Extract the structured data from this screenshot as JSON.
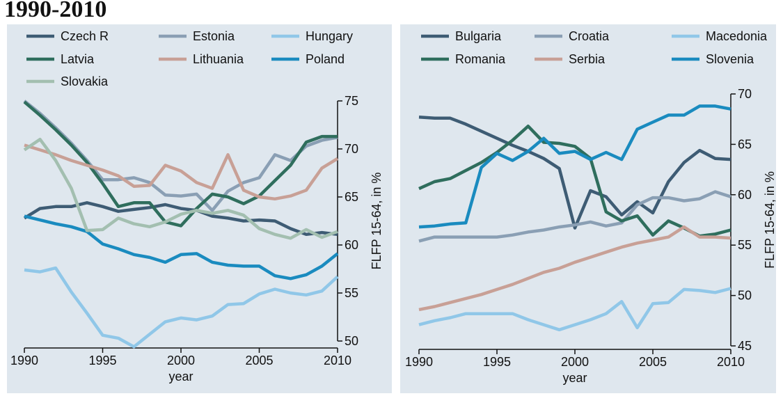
{
  "header": {
    "title": "1990-2010"
  },
  "chart_data": [
    {
      "type": "line",
      "x": [
        1990,
        1991,
        1992,
        1993,
        1994,
        1995,
        1996,
        1997,
        1998,
        1999,
        2000,
        2001,
        2002,
        2003,
        2004,
        2005,
        2006,
        2007,
        2008,
        2009,
        2010
      ],
      "xlim": [
        1990,
        2010
      ],
      "xticks": [
        1990,
        1995,
        2000,
        2005,
        2010
      ],
      "ylim": [
        50,
        75
      ],
      "yticks": [
        50,
        55,
        60,
        65,
        70,
        75
      ],
      "x_label": "year",
      "y_label": "FLFP 15-64, in %",
      "y_axis_side": "right",
      "legend_position": "top",
      "series": [
        {
          "name": "Czech R",
          "color": "#3e5c74",
          "values": [
            62.8,
            63.8,
            64.0,
            64.0,
            64.4,
            64.0,
            63.5,
            63.7,
            63.9,
            64.2,
            63.8,
            63.6,
            63.0,
            62.8,
            62.5,
            62.6,
            62.5,
            61.7,
            61.1,
            61.3,
            61.1
          ]
        },
        {
          "name": "Estonia",
          "color": "#8a9fb4",
          "values": [
            75.0,
            73.7,
            72.2,
            70.6,
            68.8,
            66.8,
            66.8,
            67.0,
            66.5,
            65.2,
            65.1,
            65.3,
            63.6,
            65.6,
            66.5,
            67.0,
            69.4,
            68.8,
            70.3,
            70.9,
            71.2
          ]
        },
        {
          "name": "Hungary",
          "color": "#90c7e8",
          "values": [
            57.4,
            57.2,
            57.6,
            55.1,
            52.9,
            50.6,
            50.3,
            49.4,
            50.7,
            52.0,
            52.4,
            52.2,
            52.6,
            53.8,
            53.9,
            54.9,
            55.4,
            55.0,
            54.8,
            55.2,
            56.7
          ]
        },
        {
          "name": "Latvia",
          "color": "#2f6e5d",
          "values": [
            74.9,
            73.5,
            72.0,
            70.4,
            68.6,
            66.4,
            64.0,
            64.4,
            64.4,
            62.4,
            62.0,
            63.8,
            65.3,
            65.0,
            64.3,
            65.1,
            66.7,
            68.3,
            70.7,
            71.3,
            71.3
          ]
        },
        {
          "name": "Lithuania",
          "color": "#c8a096",
          "values": [
            70.4,
            69.9,
            69.4,
            68.8,
            68.3,
            67.8,
            67.2,
            66.1,
            66.2,
            68.3,
            67.7,
            66.5,
            65.9,
            69.4,
            65.7,
            65.0,
            64.8,
            65.1,
            65.7,
            68.0,
            69.0
          ]
        },
        {
          "name": "Poland",
          "color": "#1a8bbf",
          "values": [
            63.0,
            62.6,
            62.2,
            61.9,
            61.4,
            60.1,
            59.6,
            59.0,
            58.7,
            58.2,
            59.0,
            59.1,
            58.2,
            57.9,
            57.8,
            57.8,
            56.8,
            56.5,
            56.9,
            57.8,
            59.1
          ]
        },
        {
          "name": "Slovakia",
          "color": "#a3bfb0",
          "values": [
            69.9,
            71.0,
            68.8,
            65.9,
            61.5,
            61.6,
            62.8,
            62.2,
            61.9,
            62.4,
            63.2,
            63.6,
            63.3,
            63.6,
            63.1,
            61.7,
            61.1,
            60.7,
            61.6,
            60.8,
            61.4
          ]
        }
      ]
    },
    {
      "type": "line",
      "x": [
        1990,
        1991,
        1992,
        1993,
        1994,
        1995,
        1996,
        1997,
        1998,
        1999,
        2000,
        2001,
        2002,
        2003,
        2004,
        2005,
        2006,
        2007,
        2008,
        2009,
        2010
      ],
      "xlim": [
        1990,
        2010
      ],
      "xticks": [
        1990,
        1995,
        2000,
        2005,
        2010
      ],
      "ylim": [
        45,
        70
      ],
      "yticks": [
        45,
        50,
        55,
        60,
        65,
        70
      ],
      "x_label": "year",
      "y_label": "FLFP 15-64, in %",
      "y_axis_side": "right",
      "legend_position": "top",
      "series": [
        {
          "name": "Bulgaria",
          "color": "#3e5c74",
          "values": [
            67.7,
            67.6,
            67.6,
            67.0,
            66.3,
            65.6,
            64.9,
            64.3,
            63.6,
            62.6,
            56.7,
            60.4,
            59.8,
            58.0,
            59.3,
            58.2,
            61.3,
            63.2,
            64.4,
            63.6,
            63.5
          ]
        },
        {
          "name": "Croatia",
          "color": "#8a9fb4",
          "values": [
            55.4,
            55.8,
            55.8,
            55.8,
            55.8,
            55.8,
            56.0,
            56.3,
            56.5,
            56.8,
            57.0,
            57.3,
            56.9,
            57.2,
            59.0,
            59.7,
            59.7,
            59.4,
            59.6,
            60.3,
            59.8
          ]
        },
        {
          "name": "Macedonia",
          "color": "#90c7e8",
          "values": [
            47.1,
            47.5,
            47.8,
            48.2,
            48.2,
            48.2,
            48.2,
            47.6,
            47.1,
            46.6,
            47.1,
            47.6,
            48.2,
            49.4,
            46.8,
            49.2,
            49.3,
            50.6,
            50.5,
            50.3,
            50.7
          ]
        },
        {
          "name": "Romania",
          "color": "#2f6e5d",
          "values": [
            60.6,
            61.3,
            61.6,
            62.4,
            63.2,
            64.2,
            65.4,
            66.8,
            65.2,
            65.1,
            64.8,
            63.6,
            58.3,
            57.4,
            57.9,
            56.0,
            57.4,
            56.7,
            55.9,
            56.1,
            56.5
          ]
        },
        {
          "name": "Serbia",
          "color": "#c8a096",
          "values": [
            48.6,
            48.9,
            49.3,
            49.7,
            50.1,
            50.6,
            51.1,
            51.7,
            52.3,
            52.7,
            53.3,
            53.8,
            54.3,
            54.8,
            55.2,
            55.5,
            55.8,
            56.8,
            55.8,
            55.8,
            55.7
          ]
        },
        {
          "name": "Slovenia",
          "color": "#1a8bbf",
          "values": [
            56.8,
            56.9,
            57.1,
            57.2,
            62.7,
            64.1,
            63.4,
            64.3,
            65.6,
            64.1,
            64.3,
            63.5,
            64.2,
            63.5,
            66.5,
            67.2,
            67.9,
            67.9,
            68.8,
            68.8,
            68.5
          ]
        }
      ]
    }
  ]
}
